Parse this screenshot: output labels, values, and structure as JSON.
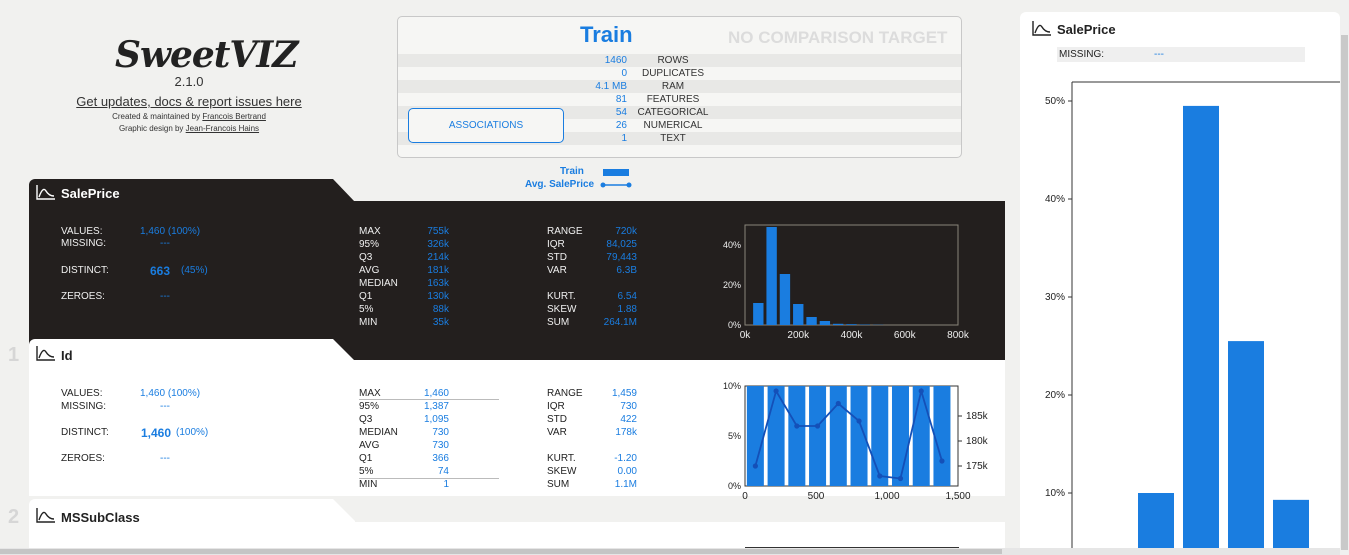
{
  "header": {
    "logo_text": "SweetVIZ",
    "version": "2.1.0",
    "updates_link": "Get updates, docs & report issues here",
    "credit1_prefix": "Created & maintained by ",
    "credit1_name": "Francois Bertrand",
    "credit2_prefix": "Graphic design by ",
    "credit2_name": "Jean-Francois Hains"
  },
  "overview": {
    "title": "Train",
    "no_comparison": "NO COMPARISON TARGET",
    "associations_button": "ASSOCIATIONS",
    "rows": [
      {
        "value": "1460",
        "label": "ROWS"
      },
      {
        "value": "0",
        "label": "DUPLICATES"
      },
      {
        "value": "4.1 MB",
        "label": "RAM"
      },
      {
        "value": "81",
        "label": "FEATURES"
      },
      {
        "value": "54",
        "label": "CATEGORICAL"
      },
      {
        "value": "26",
        "label": "NUMERICAL"
      },
      {
        "value": "1",
        "label": "TEXT"
      }
    ]
  },
  "legend": {
    "train": "Train",
    "avg": "Avg. SalePrice"
  },
  "colors": {
    "accent": "#1a7de0",
    "dark_panel": "#231f1e"
  },
  "icons": {
    "feature": "distribution-icon"
  },
  "salesprice": {
    "title": "SalePrice",
    "left_labels": [
      "VALUES:",
      "MISSING:",
      "DISTINCT:",
      "ZEROES:"
    ],
    "values_val": "1,460",
    "values_pct": "(100%)",
    "missing_val": "---",
    "distinct_val": "663",
    "distinct_pct": "(45%)",
    "zeroes_val": "---",
    "quantiles": [
      {
        "label": "MAX",
        "value": "755k"
      },
      {
        "label": "95%",
        "value": "326k"
      },
      {
        "label": "Q3",
        "value": "214k"
      },
      {
        "label": "AVG",
        "value": "181k"
      },
      {
        "label": "MEDIAN",
        "value": "163k"
      },
      {
        "label": "Q1",
        "value": "130k"
      },
      {
        "label": "5%",
        "value": "88k"
      },
      {
        "label": "MIN",
        "value": "35k"
      }
    ],
    "stats1": [
      {
        "label": "RANGE",
        "value": "720k"
      },
      {
        "label": "IQR",
        "value": "84,025"
      },
      {
        "label": "STD",
        "value": "79,443"
      },
      {
        "label": "VAR",
        "value": "6.3B"
      }
    ],
    "stats2": [
      {
        "label": "KURT.",
        "value": "6.54"
      },
      {
        "label": "SKEW",
        "value": "1.88"
      },
      {
        "label": "SUM",
        "value": "264.1M"
      }
    ]
  },
  "id_feature": {
    "number": "1",
    "title": "Id",
    "values_val": "1,460",
    "values_pct": "(100%)",
    "missing_val": "---",
    "distinct_val": "1,460",
    "distinct_pct": "(100%)",
    "zeroes_val": "---",
    "quantiles": [
      {
        "label": "MAX",
        "value": "1,460"
      },
      {
        "label": "95%",
        "value": "1,387"
      },
      {
        "label": "Q3",
        "value": "1,095"
      },
      {
        "label": "MEDIAN",
        "value": "730"
      },
      {
        "label": "AVG",
        "value": "730"
      },
      {
        "label": "Q1",
        "value": "366"
      },
      {
        "label": "5%",
        "value": "74"
      },
      {
        "label": "MIN",
        "value": "1"
      }
    ],
    "stats1": [
      {
        "label": "RANGE",
        "value": "1,459"
      },
      {
        "label": "IQR",
        "value": "730"
      },
      {
        "label": "STD",
        "value": "422"
      },
      {
        "label": "VAR",
        "value": "178k"
      }
    ],
    "stats2": [
      {
        "label": "KURT.",
        "value": "-1.20"
      },
      {
        "label": "SKEW",
        "value": "0.00"
      },
      {
        "label": "SUM",
        "value": "1.1M"
      }
    ]
  },
  "mssubclass": {
    "number": "2",
    "title": "MSSubClass"
  },
  "right_panel": {
    "title": "SalePrice",
    "missing_label": "MISSING:",
    "missing_val": "---"
  },
  "chart_data": [
    {
      "type": "bar",
      "x": [
        50000,
        100000,
        150000,
        200000,
        250000,
        300000,
        350000,
        400000,
        450000,
        500000
      ],
      "values": [
        0.11,
        0.49,
        0.255,
        0.105,
        0.04,
        0.02,
        0.006,
        0.004,
        0.002,
        0.001
      ],
      "xticks": [
        "0k",
        "200k",
        "400k",
        "600k",
        "800k"
      ],
      "yticks": [
        "0%",
        "20%",
        "40%"
      ],
      "xlim": [
        0,
        800000
      ],
      "ylim": [
        0,
        0.5
      ]
    },
    {
      "type": "bar",
      "x": [
        73,
        219,
        365,
        511,
        657,
        803,
        949,
        1095,
        1241,
        1387
      ],
      "series": [
        {
          "values": [
            0.1,
            0.1,
            0.1,
            0.1,
            0.1,
            0.1,
            0.1,
            0.1,
            0.1,
            0.1
          ]
        },
        {
          "values": [
            175000,
            190000,
            183000,
            183000,
            187500,
            184000,
            173000,
            172500,
            190000,
            176000
          ]
        }
      ],
      "xticks": [
        "0",
        "500",
        "1,000",
        "1,500"
      ],
      "yticks_left": [
        "0%",
        "5%",
        "10%"
      ],
      "yticks_right": [
        "175k",
        "180k",
        "185k"
      ],
      "xlim": [
        0,
        1500
      ],
      "ylim_left": [
        0,
        0.1
      ],
      "ylim_right": [
        171000,
        191000
      ]
    },
    {
      "type": "bar",
      "values": [
        0.1,
        0.495,
        0.255,
        0.093
      ],
      "yticks": [
        "10%",
        "20%",
        "30%",
        "40%",
        "50%"
      ],
      "ylim": [
        0.05,
        0.53
      ]
    }
  ]
}
